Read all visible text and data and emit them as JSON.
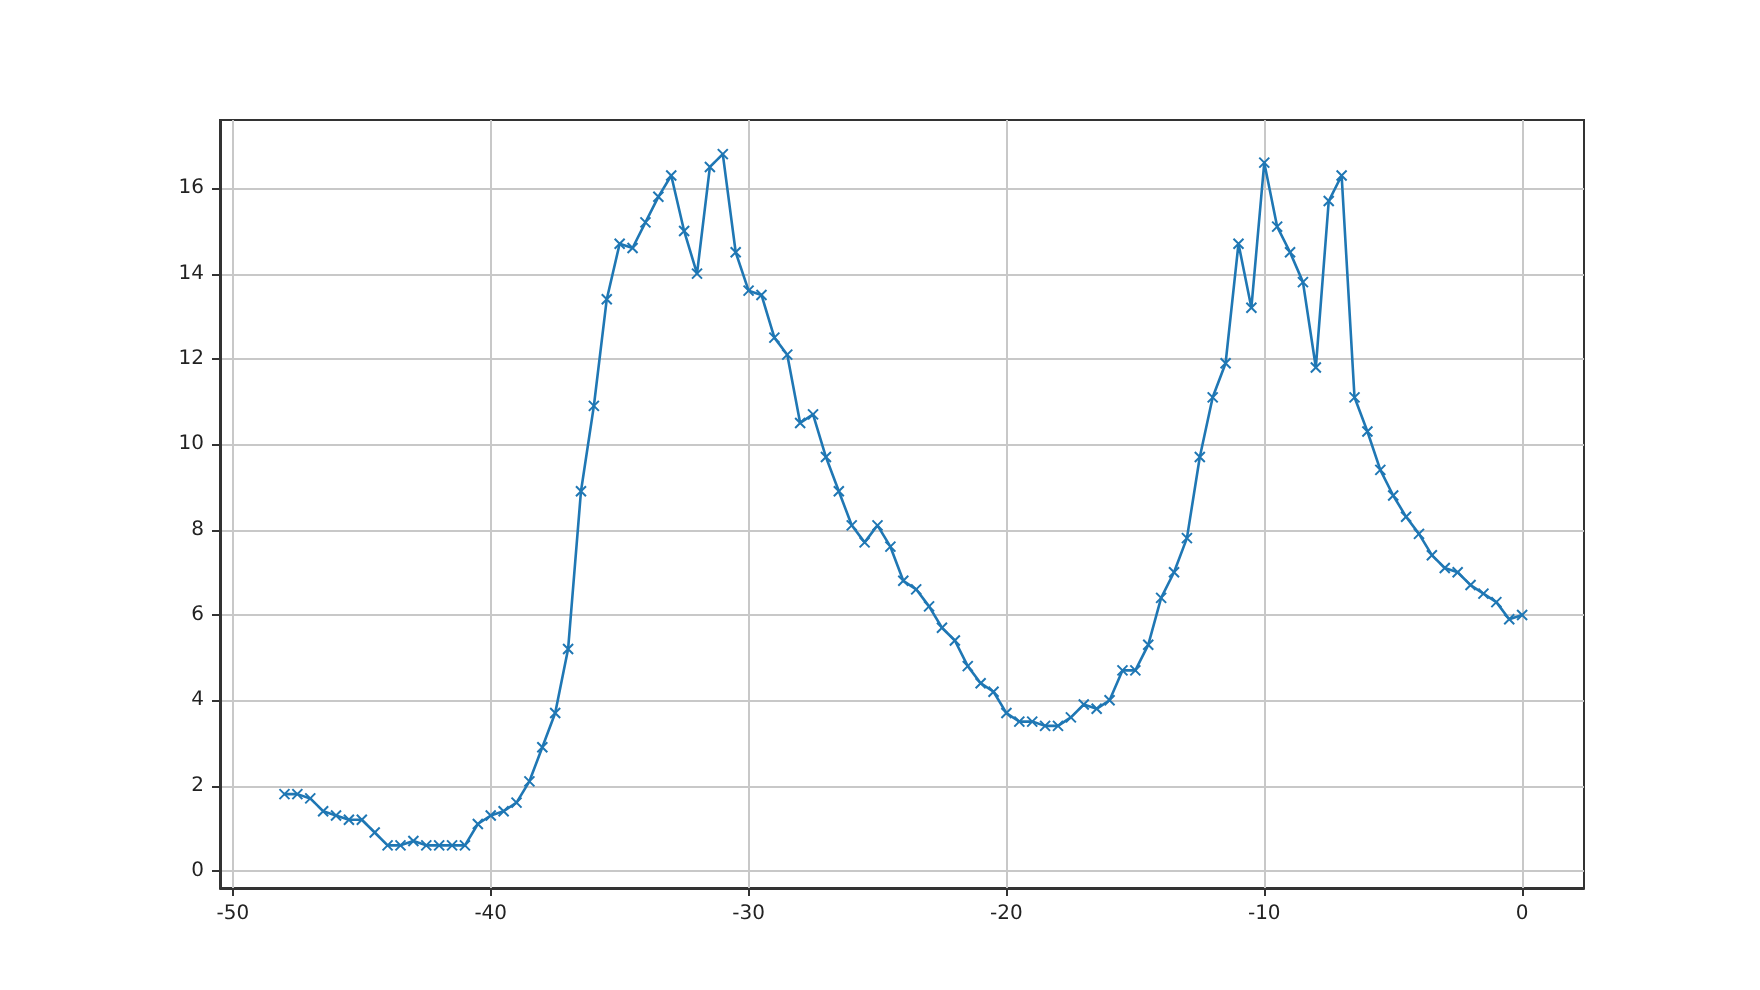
{
  "chart_data": {
    "type": "line",
    "x": [
      -48,
      -47.5,
      -47,
      -46.5,
      -46,
      -45.5,
      -45,
      -44.5,
      -44,
      -43.5,
      -43,
      -42.5,
      -42,
      -41.5,
      -41,
      -40.5,
      -40,
      -39.5,
      -39,
      -38.5,
      -38,
      -37.5,
      -37,
      -36.5,
      -36,
      -35.5,
      -35,
      -34.5,
      -34,
      -33.5,
      -33,
      -32.5,
      -32,
      -31.5,
      -31,
      -30.5,
      -30,
      -29.5,
      -29,
      -28.5,
      -28,
      -27.5,
      -27,
      -26.5,
      -26,
      -25.5,
      -25,
      -24.5,
      -24,
      -23.5,
      -23,
      -22.5,
      -22,
      -21.5,
      -21,
      -20.5,
      -20,
      -19.5,
      -19,
      -18.5,
      -18,
      -17.5,
      -17,
      -16.5,
      -16,
      -15.5,
      -15,
      -14.5,
      -14,
      -13.5,
      -13,
      -12.5,
      -12,
      -11.5,
      -11,
      -10.5,
      -10,
      -9.5,
      -9,
      -8.5,
      -8,
      -7.5,
      -7,
      -6.5,
      -6,
      -5.5,
      -5,
      -4.5,
      -4,
      -3.5,
      -3,
      -2.5,
      -2,
      -1.5,
      -1,
      -0.5,
      0
    ],
    "series": [
      {
        "color": "#1f77b4",
        "values": [
          1.8,
          1.8,
          1.7,
          1.4,
          1.3,
          1.2,
          1.2,
          0.9,
          0.6,
          0.6,
          0.7,
          0.6,
          0.6,
          0.6,
          0.6,
          1.1,
          1.3,
          1.4,
          1.6,
          2.1,
          2.9,
          3.7,
          5.2,
          8.9,
          10.9,
          13.4,
          14.7,
          14.6,
          15.2,
          15.8,
          16.3,
          15.0,
          14.0,
          16.5,
          16.8,
          14.5,
          13.6,
          13.5,
          12.5,
          12.1,
          10.5,
          10.7,
          9.7,
          8.9,
          8.1,
          7.7,
          8.1,
          7.6,
          6.8,
          6.6,
          6.2,
          5.7,
          5.4,
          4.8,
          4.4,
          4.2,
          3.7,
          3.5,
          3.5,
          3.4,
          3.4,
          3.6,
          3.9,
          3.8,
          4.0,
          4.7,
          4.7,
          5.3,
          6.4,
          7.0,
          7.8,
          9.7,
          11.1,
          11.9,
          14.7,
          13.2,
          16.6,
          15.1,
          14.5,
          13.8,
          11.8,
          15.7,
          16.3,
          11.1,
          10.3,
          9.4,
          8.8,
          8.3,
          7.9,
          7.4,
          7.1,
          7.0,
          6.7,
          6.5,
          6.3,
          5.9,
          6.0
        ]
      }
    ],
    "xlim": [
      -50.5,
      2.4
    ],
    "xticks": [
      -50,
      -40,
      -30,
      -20,
      -10,
      0
    ],
    "ylim": [
      -0.4,
      17.6
    ],
    "yticks": [
      0,
      2,
      4,
      6,
      8,
      10,
      12,
      14,
      16
    ],
    "grid": true,
    "marker": "cross",
    "line_style": "solid"
  }
}
